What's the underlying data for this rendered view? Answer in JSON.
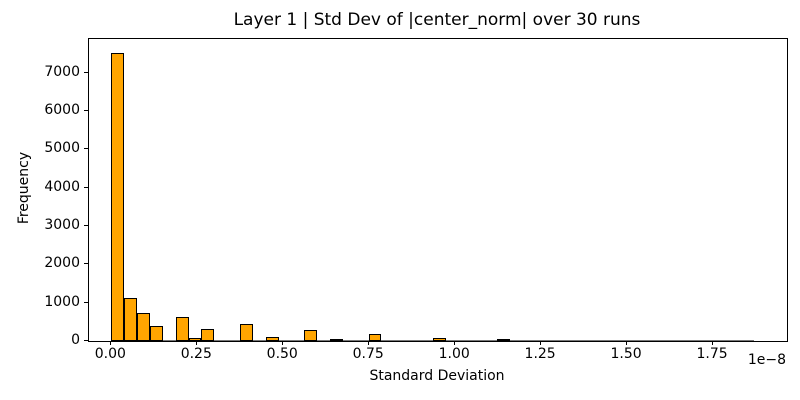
{
  "figure": {
    "title": "Layer 1 | Std Dev of |center_norm| over 30 runs",
    "xlabel": "Standard Deviation",
    "ylabel": "Frequency",
    "x_offset_label": "1e−8"
  },
  "chart_data": {
    "type": "bar",
    "subtype": "histogram",
    "title": "Layer 1 | Std Dev of |center_norm| over 30 runs",
    "xlabel": "Standard Deviation",
    "ylabel": "Frequency",
    "x_units": "1e-8",
    "bin_start": 0.0,
    "bin_width": 0.0374,
    "values": [
      7500,
      1130,
      720,
      400,
      20,
      620,
      90,
      320,
      10,
      12,
      450,
      5,
      105,
      18,
      8,
      290,
      5,
      40,
      5,
      5,
      170,
      8,
      4,
      4,
      4,
      75,
      4,
      4,
      4,
      4,
      50,
      4,
      3,
      3,
      3,
      3,
      3,
      3,
      3,
      3,
      25,
      3,
      2,
      2,
      2,
      2,
      2,
      2,
      2,
      8
    ],
    "x_tick_values": [
      0,
      0.25,
      0.5,
      0.75,
      1.0,
      1.25,
      1.5,
      1.75
    ],
    "x_tick_labels": [
      "0.00",
      "0.25",
      "0.50",
      "0.75",
      "1.00",
      "1.25",
      "1.50",
      "1.75"
    ],
    "y_tick_values": [
      0,
      1000,
      2000,
      3000,
      4000,
      5000,
      6000,
      7000
    ],
    "y_tick_labels": [
      "0",
      "1000",
      "2000",
      "3000",
      "4000",
      "5000",
      "6000",
      "7000"
    ],
    "xlim": [
      -0.065,
      1.965
    ],
    "ylim": [
      0,
      7875
    ],
    "grid": false,
    "legend": "none",
    "bar_color": "#FFA500",
    "bar_edge_color": "#000000"
  }
}
